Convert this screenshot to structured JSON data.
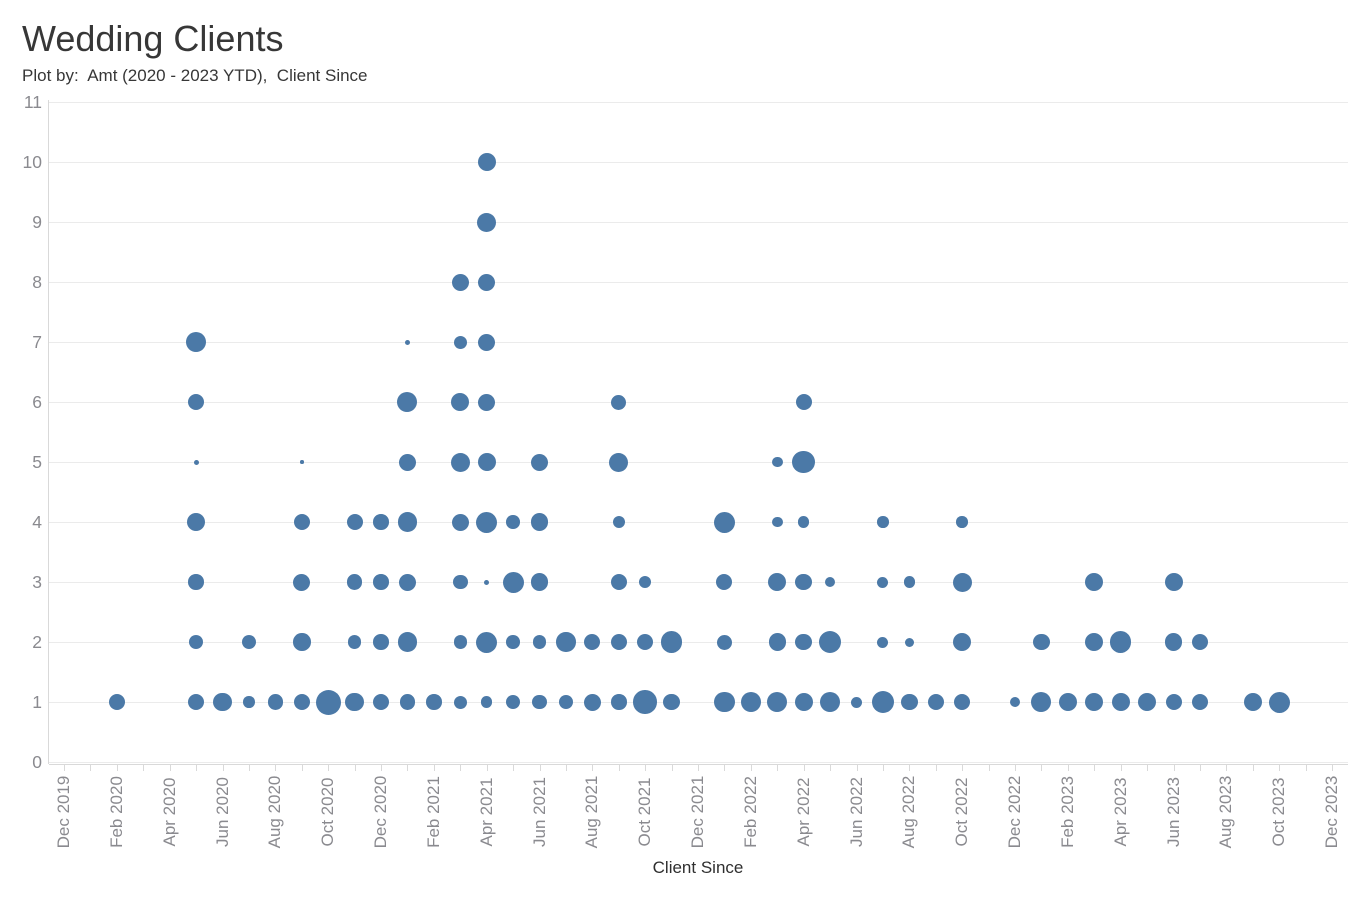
{
  "title": "Wedding Clients",
  "subtitle": "Plot by:  Amt (2020 - 2023 YTD),  Client Since",
  "chart_data": {
    "type": "scatter",
    "title": "Wedding Clients",
    "subtitle": "Plot by:  Amt (2020 - 2023 YTD),  Client Since",
    "mark_color": "#4b79a7",
    "gridline_color": "#ebebeb",
    "axis_label_color": "#8a8a8f",
    "legend": "none",
    "size_encoding": "Amt (2020 - 2023 YTD) shown as bubble size, in px diameter",
    "x_axis": {
      "title": "Client Since",
      "start": "Dec 2019",
      "end": "Dec 2023",
      "tick_labels": [
        "Dec 2019",
        "Feb 2020",
        "Apr 2020",
        "Jun 2020",
        "Aug 2020",
        "Oct 2020",
        "Dec 2020",
        "Feb 2021",
        "Apr 2021",
        "Jun 2021",
        "Aug 2021",
        "Oct 2021",
        "Dec 2021",
        "Feb 2022",
        "Apr 2022",
        "Jun 2022",
        "Aug 2022",
        "Oct 2022",
        "Dec 2022",
        "Feb 2023",
        "Apr 2023",
        "Jun 2023",
        "Aug 2023",
        "Oct 2023",
        "Dec 2023"
      ]
    },
    "y_axis": {
      "min": 0,
      "max": 11,
      "ticks": [
        0,
        1,
        2,
        3,
        4,
        5,
        6,
        7,
        8,
        9,
        10,
        11
      ]
    },
    "points": [
      [
        "Apr 2021",
        10,
        18
      ],
      [
        "Apr 2021",
        9,
        19
      ],
      [
        "Mar 2021",
        8,
        17
      ],
      [
        "Apr 2021",
        8,
        17
      ],
      [
        "May 2020",
        7,
        20
      ],
      [
        "Jan 2021",
        7,
        5
      ],
      [
        "Mar 2021",
        7,
        13
      ],
      [
        "Apr 2021",
        7,
        17
      ],
      [
        "May 2020",
        6,
        16
      ],
      [
        "Jan 2021",
        6,
        20
      ],
      [
        "Mar 2021",
        6,
        18
      ],
      [
        "Apr 2021",
        6,
        17
      ],
      [
        "Sep 2021",
        6,
        15
      ],
      [
        "Apr 2022",
        6,
        16
      ],
      [
        "May 2020",
        5,
        5
      ],
      [
        "Sep 2020",
        5,
        3.5
      ],
      [
        "Jan 2021",
        5,
        17
      ],
      [
        "Mar 2021",
        5,
        19
      ],
      [
        "Apr 2021",
        5,
        18
      ],
      [
        "Jun 2021",
        5,
        17
      ],
      [
        "Sep 2021",
        5,
        19
      ],
      [
        "Mar 2022",
        5,
        10.5
      ],
      [
        "Apr 2022",
        5,
        22.5
      ],
      [
        "May 2020",
        4,
        18.5
      ],
      [
        "Sep 2020",
        4,
        16
      ],
      [
        "Nov 2020",
        4,
        16
      ],
      [
        "Dec 2020",
        4,
        15.5
      ],
      [
        "Jan 2021",
        4,
        19.5
      ],
      [
        "Mar 2021",
        4,
        17
      ],
      [
        "Apr 2021",
        4,
        21
      ],
      [
        "May 2021",
        4,
        13.5
      ],
      [
        "Jun 2021",
        4,
        17.5
      ],
      [
        "Sep 2021",
        4,
        12
      ],
      [
        "Jan 2022",
        4,
        21
      ],
      [
        "Mar 2022",
        4,
        10.5
      ],
      [
        "Apr 2022",
        4,
        11.5
      ],
      [
        "Jul 2022",
        4,
        11.5
      ],
      [
        "Oct 2022",
        4,
        11.5
      ],
      [
        "May 2020",
        3,
        15.5
      ],
      [
        "Sep 2020",
        3,
        17
      ],
      [
        "Nov 2020",
        3,
        15.5
      ],
      [
        "Dec 2020",
        3,
        15.5
      ],
      [
        "Jan 2021",
        3,
        17
      ],
      [
        "Mar 2021",
        3,
        14.5
      ],
      [
        "Apr 2021",
        3,
        5
      ],
      [
        "May 2021",
        3,
        21
      ],
      [
        "Jun 2021",
        3,
        17.5
      ],
      [
        "Sep 2021",
        3,
        16
      ],
      [
        "Oct 2021",
        3,
        12
      ],
      [
        "Jan 2022",
        3,
        16
      ],
      [
        "Mar 2022",
        3,
        18
      ],
      [
        "Apr 2022",
        3,
        16.5
      ],
      [
        "May 2022",
        3,
        10
      ],
      [
        "Jul 2022",
        3,
        11
      ],
      [
        "Aug 2022",
        3,
        11.5
      ],
      [
        "Oct 2022",
        3,
        19
      ],
      [
        "Mar 2023",
        3,
        18
      ],
      [
        "Jun 2023",
        3,
        18
      ],
      [
        "May 2020",
        2,
        14.5
      ],
      [
        "Jul 2020",
        2,
        14.5
      ],
      [
        "Sep 2020",
        2,
        17.5
      ],
      [
        "Nov 2020",
        2,
        13.5
      ],
      [
        "Dec 2020",
        2,
        15.5
      ],
      [
        "Jan 2021",
        2,
        19.5
      ],
      [
        "Mar 2021",
        2,
        13.5
      ],
      [
        "Apr 2021",
        2,
        21
      ],
      [
        "May 2021",
        2,
        13.5
      ],
      [
        "Jun 2021",
        2,
        13.5
      ],
      [
        "Jul 2021",
        2,
        19.5
      ],
      [
        "Aug 2021",
        2,
        16
      ],
      [
        "Sep 2021",
        2,
        16
      ],
      [
        "Oct 2021",
        2,
        16
      ],
      [
        "Nov 2021",
        2,
        21.5
      ],
      [
        "Jan 2022",
        2,
        15
      ],
      [
        "Mar 2022",
        2,
        17.5
      ],
      [
        "Apr 2022",
        2,
        16.5
      ],
      [
        "May 2022",
        2,
        22.5
      ],
      [
        "Jul 2022",
        2,
        11
      ],
      [
        "Aug 2022",
        2,
        9
      ],
      [
        "Oct 2022",
        2,
        18
      ],
      [
        "Jan 2023",
        2,
        16.5
      ],
      [
        "Mar 2023",
        2,
        18
      ],
      [
        "Apr 2023",
        2,
        21.5
      ],
      [
        "Jun 2023",
        2,
        17.5
      ],
      [
        "Jul 2023",
        2,
        16.5
      ],
      [
        "Feb 2020",
        1,
        16.5
      ],
      [
        "May 2020",
        1,
        16
      ],
      [
        "Jun 2020",
        1,
        18.5
      ],
      [
        "Jul 2020",
        1,
        11.5
      ],
      [
        "Aug 2020",
        1,
        15.5
      ],
      [
        "Sep 2020",
        1,
        16
      ],
      [
        "Oct 2020",
        1,
        25
      ],
      [
        "Nov 2020",
        1,
        18.5
      ],
      [
        "Dec 2020",
        1,
        16
      ],
      [
        "Jan 2021",
        1,
        15.5
      ],
      [
        "Feb 2021",
        1,
        15.5
      ],
      [
        "Mar 2021",
        1,
        13
      ],
      [
        "Apr 2021",
        1,
        11.5
      ],
      [
        "May 2021",
        1,
        14.5
      ],
      [
        "Jun 2021",
        1,
        14.5
      ],
      [
        "Jul 2021",
        1,
        14.5
      ],
      [
        "Aug 2021",
        1,
        17
      ],
      [
        "Sep 2021",
        1,
        15.5
      ],
      [
        "Oct 2021",
        1,
        23.5
      ],
      [
        "Nov 2021",
        1,
        16.5
      ],
      [
        "Jan 2022",
        1,
        20.5
      ],
      [
        "Feb 2022",
        1,
        20
      ],
      [
        "Mar 2022",
        1,
        20
      ],
      [
        "Apr 2022",
        1,
        18
      ],
      [
        "May 2022",
        1,
        20
      ],
      [
        "Jun 2022",
        1,
        11
      ],
      [
        "Jul 2022",
        1,
        22.5
      ],
      [
        "Aug 2022",
        1,
        16.5
      ],
      [
        "Sep 2022",
        1,
        16.5
      ],
      [
        "Oct 2022",
        1,
        16
      ],
      [
        "Dec 2022",
        1,
        10
      ],
      [
        "Jan 2023",
        1,
        20
      ],
      [
        "Feb 2023",
        1,
        18
      ],
      [
        "Mar 2023",
        1,
        18
      ],
      [
        "Apr 2023",
        1,
        18
      ],
      [
        "May 2023",
        1,
        18
      ],
      [
        "Jun 2023",
        1,
        16
      ],
      [
        "Jul 2023",
        1,
        16.5
      ],
      [
        "Sep 2023",
        1,
        18.5
      ],
      [
        "Oct 2023",
        1,
        21
      ]
    ]
  }
}
